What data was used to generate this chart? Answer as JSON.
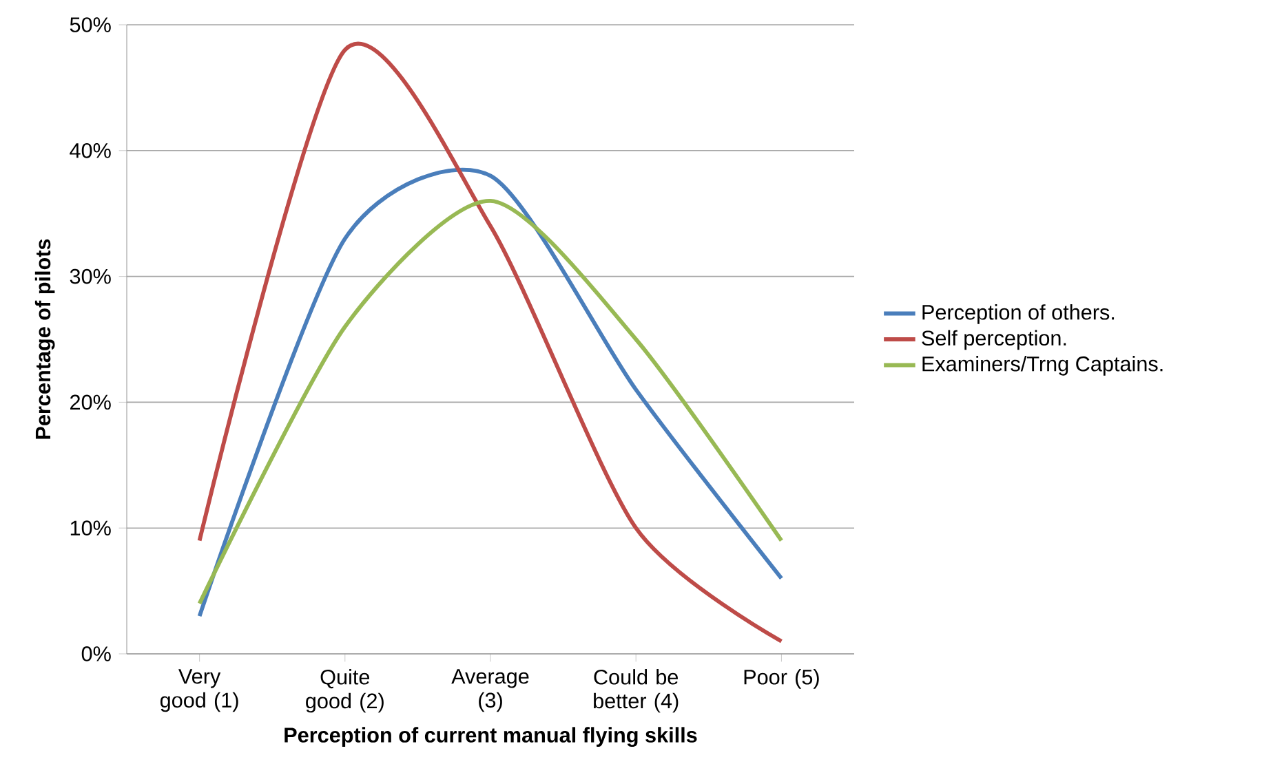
{
  "chart_data": {
    "type": "line",
    "xlabel": "Perception of current manual flying skills",
    "ylabel": "Percentage of pilots",
    "categories": [
      "Very good (1)",
      "Quite good (2)",
      "Average (3)",
      "Could be better (4)",
      "Poor (5)"
    ],
    "series": [
      {
        "name": "Perception of others.",
        "color": "#4a7ebb",
        "values": [
          3,
          33,
          38,
          21,
          6
        ]
      },
      {
        "name": "Self perception.",
        "color": "#be4b48",
        "values": [
          9,
          48,
          34,
          10,
          1
        ]
      },
      {
        "name": "Examiners/Trng Captains.",
        "color": "#98b954",
        "values": [
          4,
          26,
          36,
          25,
          9
        ]
      }
    ],
    "ylim": [
      0,
      50
    ],
    "yticks": [
      {
        "value": 0,
        "label": "0%"
      },
      {
        "value": 10,
        "label": "10%"
      },
      {
        "value": 20,
        "label": "20%"
      },
      {
        "value": 30,
        "label": "30%"
      },
      {
        "value": 40,
        "label": "40%"
      },
      {
        "value": 50,
        "label": "50%"
      }
    ],
    "grid": "y",
    "legend": "right",
    "marker": "none",
    "line_style": "solid"
  }
}
